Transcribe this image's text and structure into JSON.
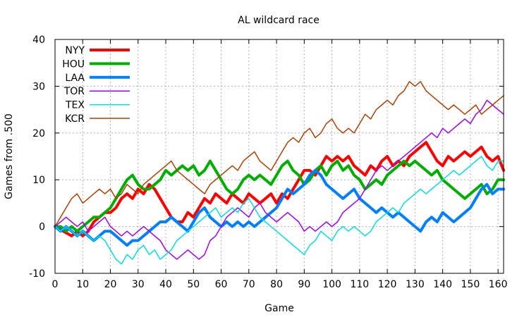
{
  "chart_data": {
    "type": "line",
    "title": "AL wildcard race",
    "xlabel": "Game",
    "ylabel": "Games from .500",
    "xlim": [
      0,
      162
    ],
    "ylim": [
      -10,
      40
    ],
    "xticks": [
      0,
      10,
      20,
      30,
      40,
      50,
      60,
      70,
      80,
      90,
      100,
      110,
      120,
      130,
      140,
      150,
      160
    ],
    "yticks": [
      -10,
      0,
      10,
      20,
      30,
      40
    ],
    "grid": true,
    "legend_position": "top-left",
    "series": [
      {
        "name": "NYY",
        "color": "#ff0000",
        "width": "thick",
        "x": [
          0,
          3,
          6,
          8,
          10,
          12,
          14,
          16,
          18,
          20,
          22,
          24,
          26,
          28,
          30,
          32,
          34,
          36,
          38,
          40,
          42,
          44,
          46,
          48,
          50,
          52,
          54,
          56,
          58,
          60,
          62,
          64,
          66,
          68,
          70,
          72,
          74,
          76,
          78,
          80,
          82,
          84,
          86,
          88,
          90,
          92,
          94,
          96,
          98,
          100,
          102,
          104,
          106,
          108,
          110,
          112,
          114,
          116,
          118,
          120,
          122,
          124,
          126,
          128,
          130,
          132,
          134,
          136,
          138,
          140,
          142,
          144,
          146,
          148,
          150,
          152,
          154,
          156,
          158,
          160,
          162
        ],
        "y": [
          0,
          -1,
          -2,
          -1,
          -2,
          -1,
          1,
          2,
          3,
          3,
          4,
          6,
          7,
          6,
          8,
          7,
          9,
          8,
          6,
          4,
          2,
          1,
          1,
          3,
          2,
          4,
          6,
          5,
          7,
          6,
          5,
          7,
          6,
          5,
          7,
          6,
          5,
          6,
          7,
          5,
          7,
          6,
          8,
          10,
          12,
          12,
          11,
          13,
          15,
          14,
          15,
          14,
          15,
          13,
          12,
          11,
          13,
          12,
          14,
          15,
          13,
          14,
          13,
          15,
          16,
          17,
          18,
          16,
          14,
          13,
          15,
          14,
          15,
          16,
          15,
          16,
          17,
          15,
          14,
          15,
          12
        ]
      },
      {
        "name": "HOU",
        "color": "#00b000",
        "width": "thick",
        "x": [
          0,
          2,
          4,
          6,
          8,
          10,
          12,
          14,
          16,
          18,
          20,
          22,
          24,
          26,
          28,
          30,
          32,
          34,
          36,
          38,
          40,
          42,
          44,
          46,
          48,
          50,
          52,
          54,
          56,
          58,
          60,
          62,
          64,
          66,
          68,
          70,
          72,
          74,
          76,
          78,
          80,
          82,
          84,
          86,
          88,
          90,
          92,
          94,
          96,
          98,
          100,
          102,
          104,
          106,
          108,
          110,
          112,
          114,
          116,
          118,
          120,
          122,
          124,
          126,
          128,
          130,
          132,
          134,
          136,
          138,
          140,
          142,
          144,
          146,
          148,
          150,
          152,
          154,
          156,
          158,
          160,
          162
        ],
        "y": [
          0,
          0,
          -1,
          0,
          -1,
          0,
          1,
          2,
          2,
          3,
          4,
          6,
          8,
          10,
          11,
          9,
          8,
          8,
          9,
          10,
          12,
          11,
          12,
          13,
          12,
          13,
          11,
          12,
          14,
          12,
          10,
          8,
          7,
          8,
          10,
          11,
          10,
          11,
          10,
          9,
          11,
          13,
          14,
          12,
          11,
          9,
          10,
          12,
          13,
          11,
          13,
          14,
          12,
          13,
          11,
          10,
          8,
          9,
          10,
          9,
          11,
          12,
          13,
          14,
          13,
          14,
          13,
          12,
          11,
          12,
          10,
          9,
          8,
          7,
          6,
          7,
          8,
          9,
          7,
          8,
          10,
          10
        ]
      },
      {
        "name": "LAA",
        "color": "#0080ff",
        "width": "thick",
        "x": [
          0,
          2,
          4,
          6,
          8,
          10,
          12,
          14,
          16,
          18,
          20,
          22,
          24,
          26,
          28,
          30,
          32,
          34,
          36,
          38,
          40,
          42,
          44,
          46,
          48,
          50,
          52,
          54,
          56,
          58,
          60,
          62,
          64,
          66,
          68,
          70,
          72,
          74,
          76,
          78,
          80,
          82,
          84,
          86,
          88,
          90,
          92,
          94,
          96,
          98,
          100,
          102,
          104,
          106,
          108,
          110,
          112,
          114,
          116,
          118,
          120,
          122,
          124,
          126,
          128,
          130,
          132,
          134,
          136,
          138,
          140,
          142,
          144,
          146,
          148,
          150,
          152,
          154,
          156,
          158,
          160,
          162
        ],
        "y": [
          0,
          -1,
          0,
          -1,
          -2,
          -1,
          -2,
          -3,
          -2,
          -1,
          -1,
          -2,
          -3,
          -4,
          -3,
          -3,
          -2,
          -1,
          0,
          1,
          1,
          2,
          1,
          0,
          -1,
          1,
          3,
          4,
          2,
          1,
          0,
          1,
          0,
          1,
          0,
          1,
          0,
          1,
          2,
          3,
          4,
          6,
          8,
          7,
          8,
          9,
          11,
          12,
          11,
          9,
          8,
          7,
          6,
          7,
          8,
          6,
          5,
          4,
          3,
          4,
          3,
          2,
          3,
          2,
          1,
          0,
          -1,
          1,
          2,
          1,
          3,
          2,
          1,
          2,
          3,
          4,
          6,
          8,
          9,
          7,
          8,
          8
        ]
      },
      {
        "name": "TOR",
        "color": "#a000ff",
        "width": "thin",
        "x": [
          0,
          2,
          4,
          6,
          8,
          10,
          12,
          14,
          16,
          18,
          20,
          22,
          24,
          26,
          28,
          30,
          32,
          34,
          36,
          38,
          40,
          42,
          44,
          46,
          48,
          50,
          52,
          54,
          56,
          58,
          60,
          62,
          64,
          66,
          68,
          70,
          72,
          74,
          76,
          78,
          80,
          82,
          84,
          86,
          88,
          90,
          92,
          94,
          96,
          98,
          100,
          102,
          104,
          106,
          108,
          110,
          112,
          114,
          116,
          118,
          120,
          122,
          124,
          126,
          128,
          130,
          132,
          134,
          136,
          138,
          140,
          142,
          144,
          146,
          148,
          150,
          152,
          154,
          156,
          158,
          160,
          162
        ],
        "y": [
          0,
          1,
          2,
          1,
          0,
          1,
          -1,
          0,
          1,
          2,
          0,
          -1,
          -2,
          -1,
          -2,
          -1,
          0,
          -1,
          -2,
          -3,
          -5,
          -6,
          -7,
          -6,
          -5,
          -6,
          -7,
          -6,
          -3,
          -2,
          0,
          2,
          3,
          4,
          3,
          2,
          4,
          5,
          3,
          2,
          1,
          2,
          3,
          2,
          1,
          -1,
          0,
          -1,
          0,
          1,
          0,
          1,
          3,
          4,
          5,
          6,
          8,
          10,
          12,
          13,
          12,
          13,
          14,
          15,
          16,
          17,
          18,
          19,
          20,
          19,
          21,
          20,
          21,
          22,
          23,
          22,
          24,
          25,
          27,
          26,
          25,
          24
        ]
      },
      {
        "name": "TEX",
        "color": "#00e0e0",
        "width": "thin",
        "x": [
          0,
          2,
          4,
          6,
          8,
          10,
          12,
          14,
          16,
          18,
          20,
          22,
          24,
          26,
          28,
          30,
          32,
          34,
          36,
          38,
          40,
          42,
          44,
          46,
          48,
          50,
          52,
          54,
          56,
          58,
          60,
          62,
          64,
          66,
          68,
          70,
          72,
          74,
          76,
          78,
          80,
          82,
          84,
          86,
          88,
          90,
          92,
          94,
          96,
          98,
          100,
          102,
          104,
          106,
          108,
          110,
          112,
          114,
          116,
          118,
          120,
          122,
          124,
          126,
          128,
          130,
          132,
          134,
          136,
          138,
          140,
          142,
          144,
          146,
          148,
          150,
          152,
          154,
          156,
          158,
          160,
          162
        ],
        "y": [
          0,
          -1,
          0,
          -1,
          -2,
          -1,
          -2,
          -3,
          -2,
          -3,
          -5,
          -7,
          -8,
          -6,
          -7,
          -5,
          -4,
          -6,
          -5,
          -7,
          -6,
          -5,
          -3,
          -2,
          -1,
          0,
          1,
          2,
          3,
          4,
          2,
          3,
          4,
          3,
          5,
          6,
          4,
          2,
          1,
          0,
          -1,
          -2,
          -3,
          -4,
          -5,
          -6,
          -4,
          -3,
          -1,
          -2,
          -3,
          -1,
          0,
          -1,
          0,
          -1,
          -2,
          -1,
          1,
          2,
          3,
          4,
          3,
          5,
          6,
          7,
          8,
          7,
          8,
          9,
          10,
          11,
          12,
          11,
          12,
          13,
          14,
          15,
          13,
          12,
          14,
          14
        ]
      },
      {
        "name": "KCR",
        "color": "#b04000",
        "width": "thin",
        "x": [
          0,
          2,
          4,
          6,
          8,
          10,
          12,
          14,
          16,
          18,
          20,
          22,
          24,
          26,
          28,
          30,
          32,
          34,
          36,
          38,
          40,
          42,
          44,
          46,
          48,
          50,
          52,
          54,
          56,
          58,
          60,
          62,
          64,
          66,
          68,
          70,
          72,
          74,
          76,
          78,
          80,
          82,
          84,
          86,
          88,
          90,
          92,
          94,
          96,
          98,
          100,
          102,
          104,
          106,
          108,
          110,
          112,
          114,
          116,
          118,
          120,
          122,
          124,
          126,
          128,
          130,
          132,
          134,
          136,
          138,
          140,
          142,
          144,
          146,
          148,
          150,
          152,
          154,
          156,
          158,
          160,
          162
        ],
        "y": [
          0,
          2,
          4,
          6,
          7,
          5,
          6,
          7,
          8,
          7,
          8,
          6,
          7,
          9,
          8,
          7,
          9,
          10,
          11,
          12,
          13,
          14,
          12,
          11,
          10,
          9,
          8,
          7,
          9,
          10,
          11,
          12,
          13,
          12,
          14,
          15,
          16,
          14,
          13,
          12,
          14,
          16,
          18,
          19,
          18,
          20,
          21,
          19,
          20,
          22,
          23,
          21,
          20,
          21,
          20,
          22,
          24,
          23,
          25,
          26,
          27,
          26,
          28,
          29,
          31,
          30,
          31,
          29,
          28,
          27,
          26,
          25,
          26,
          25,
          24,
          25,
          26,
          24,
          25,
          26,
          27,
          28
        ]
      }
    ]
  }
}
